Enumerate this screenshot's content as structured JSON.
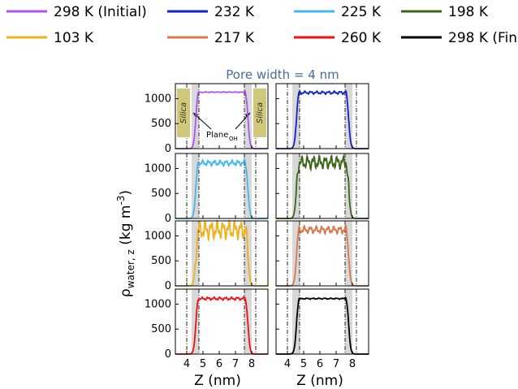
{
  "chart_data": {
    "type": "line",
    "title": "Pore width = 4 nm",
    "xlabel": "Z (nm)",
    "ylabel": "ρwater, z (kg m-3)",
    "ylabel_parts": {
      "rho": "ρ",
      "sub": "water, z",
      "unit_open": " (kg m",
      "sup": "-3",
      "unit_close": ")"
    },
    "xticks": [
      "4",
      "5",
      "6",
      "7",
      "8"
    ],
    "yticks": [
      "0",
      "500",
      "1000"
    ],
    "xlim": [
      3.3,
      9.0
    ],
    "ylim": [
      0,
      1300
    ],
    "wall_bands": [
      [
        4.3,
        4.75
      ],
      [
        7.55,
        8.0
      ]
    ],
    "dashdot_lines": [
      4.0,
      4.75,
      7.55,
      8.25
    ],
    "annotation_silica": "Silica",
    "annotation_plane": "Plane",
    "annotation_plane_sub": "OH",
    "legend": [
      {
        "label": "298 K (Initial)",
        "color": "#aa55ee"
      },
      {
        "label": "232 K",
        "color": "#1122cc"
      },
      {
        "label": "225 K",
        "color": "#44b8ee"
      },
      {
        "label": "198 K",
        "color": "#3a6615"
      },
      {
        "label": "103 K",
        "color": "#f0b020"
      },
      {
        "label": "217 K",
        "color": "#d8784a"
      },
      {
        "label": "260 K",
        "color": "#ee1111"
      },
      {
        "label": "298 K (Final)",
        "color": "#000000"
      }
    ],
    "panels": [
      {
        "series": "298 K (Initial)",
        "color": "#aa55ee",
        "plateau": 1130,
        "noise": 5
      },
      {
        "series": "232 K",
        "color": "#1122cc",
        "plateau": 1120,
        "noise": 25
      },
      {
        "series": "225 K",
        "color": "#44b8ee",
        "plateau": 1110,
        "noise": 45
      },
      {
        "series": "198 K",
        "color": "#3a6615",
        "plateau": 1120,
        "noise": 110
      },
      {
        "series": "103 K",
        "color": "#f0b020",
        "plateau": 1120,
        "noise": 160
      },
      {
        "series": "217 K",
        "color": "#d8784a",
        "plateau": 1120,
        "noise": 60
      },
      {
        "series": "260 K",
        "color": "#ee1111",
        "plateau": 1110,
        "noise": 25
      },
      {
        "series": "298 K (Final)",
        "color": "#000000",
        "plateau": 1110,
        "noise": 10
      }
    ]
  }
}
